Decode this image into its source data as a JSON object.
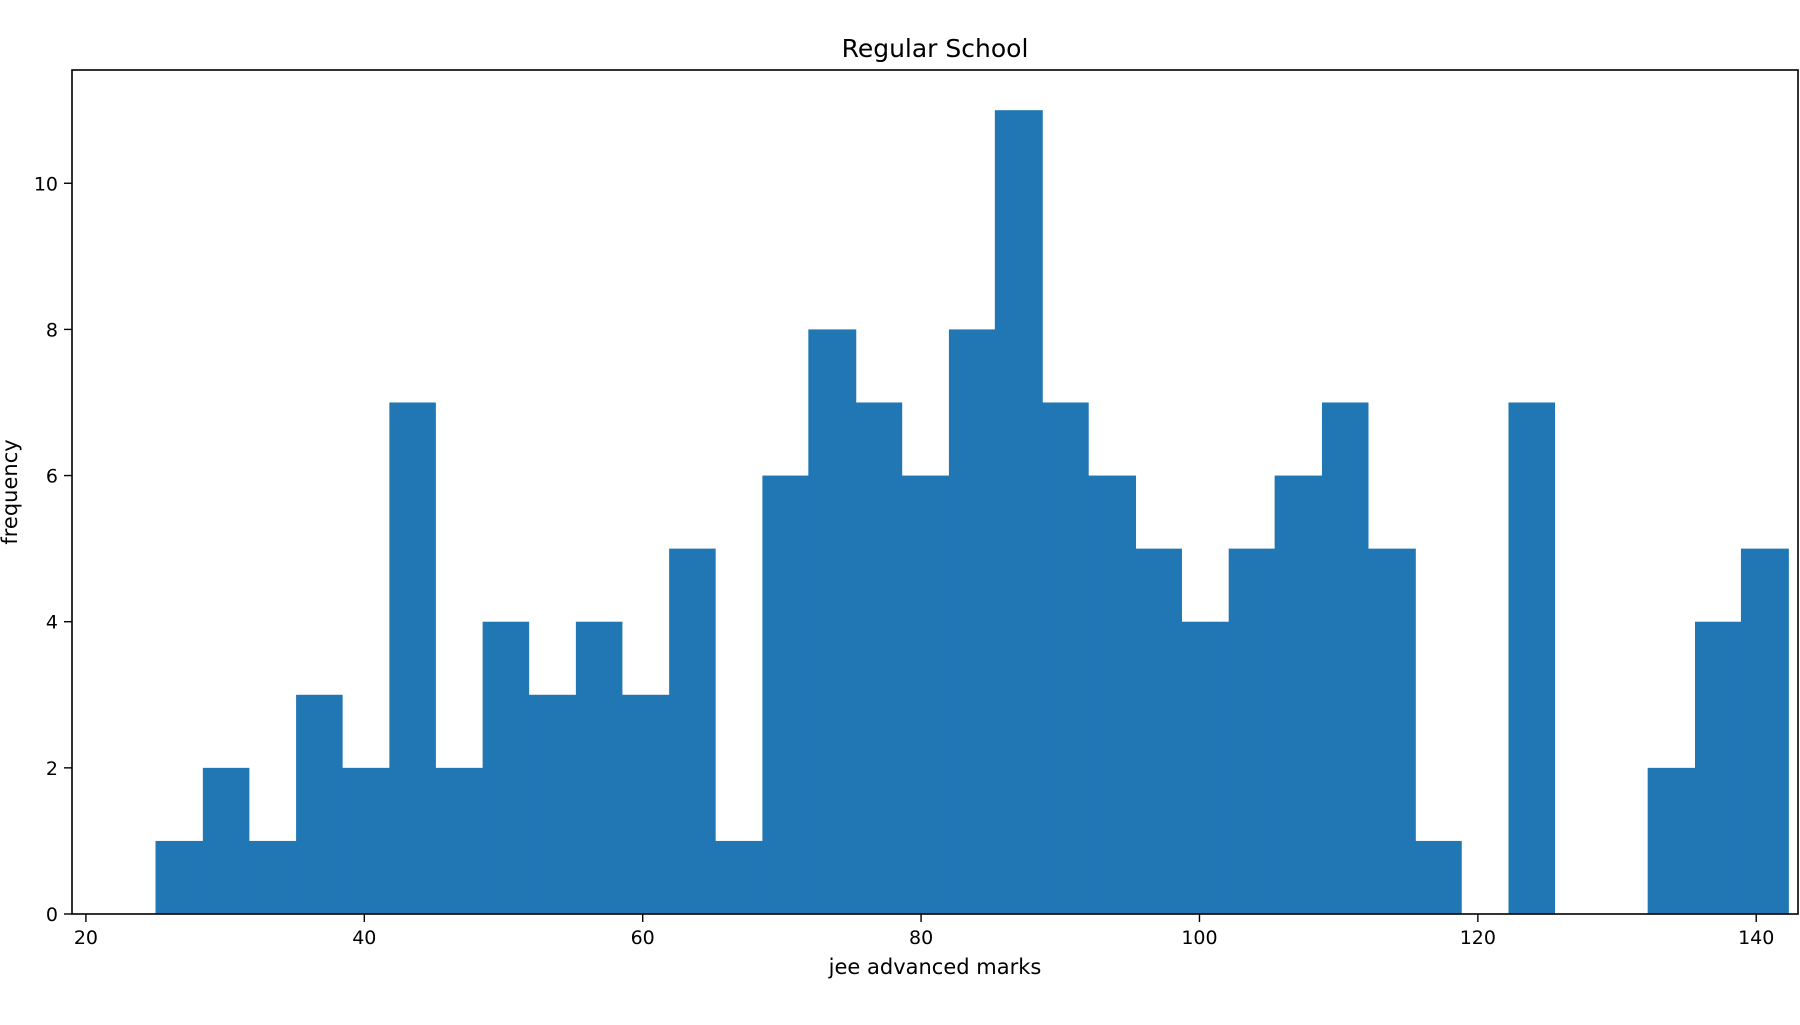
{
  "chart_data": {
    "type": "bar",
    "title": "Regular School",
    "xlabel": "jee advanced marks",
    "ylabel": "frequency",
    "xlim": [
      19,
      143
    ],
    "ylim": [
      0,
      11.55
    ],
    "xticks": [
      20,
      40,
      60,
      80,
      100,
      120,
      140
    ],
    "yticks": [
      0,
      2,
      4,
      6,
      8,
      10
    ],
    "bins": [
      {
        "x0": 25.0,
        "x1": 28.4,
        "value": 1
      },
      {
        "x0": 28.4,
        "x1": 31.7,
        "value": 2
      },
      {
        "x0": 31.7,
        "x1": 35.1,
        "value": 1
      },
      {
        "x0": 35.1,
        "x1": 38.4,
        "value": 3
      },
      {
        "x0": 38.4,
        "x1": 41.8,
        "value": 2
      },
      {
        "x0": 41.8,
        "x1": 45.1,
        "value": 7
      },
      {
        "x0": 45.1,
        "x1": 48.5,
        "value": 2
      },
      {
        "x0": 48.5,
        "x1": 51.8,
        "value": 4
      },
      {
        "x0": 51.8,
        "x1": 55.2,
        "value": 3
      },
      {
        "x0": 55.2,
        "x1": 58.5,
        "value": 4
      },
      {
        "x0": 58.5,
        "x1": 61.9,
        "value": 3
      },
      {
        "x0": 61.9,
        "x1": 65.2,
        "value": 5
      },
      {
        "x0": 65.2,
        "x1": 68.6,
        "value": 1
      },
      {
        "x0": 68.6,
        "x1": 71.9,
        "value": 6
      },
      {
        "x0": 71.9,
        "x1": 75.3,
        "value": 8
      },
      {
        "x0": 75.3,
        "x1": 78.6,
        "value": 7
      },
      {
        "x0": 78.6,
        "x1": 82.0,
        "value": 6
      },
      {
        "x0": 82.0,
        "x1": 85.3,
        "value": 8
      },
      {
        "x0": 85.3,
        "x1": 88.7,
        "value": 11
      },
      {
        "x0": 88.7,
        "x1": 92.0,
        "value": 7
      },
      {
        "x0": 92.0,
        "x1": 95.4,
        "value": 6
      },
      {
        "x0": 95.4,
        "x1": 98.7,
        "value": 5
      },
      {
        "x0": 98.7,
        "x1": 102.1,
        "value": 4
      },
      {
        "x0": 102.1,
        "x1": 105.4,
        "value": 5
      },
      {
        "x0": 105.4,
        "x1": 108.8,
        "value": 6
      },
      {
        "x0": 108.8,
        "x1": 112.1,
        "value": 7
      },
      {
        "x0": 112.1,
        "x1": 115.5,
        "value": 5
      },
      {
        "x0": 115.5,
        "x1": 118.8,
        "value": 1
      },
      {
        "x0": 118.8,
        "x1": 122.2,
        "value": 0
      },
      {
        "x0": 122.2,
        "x1": 125.5,
        "value": 7
      },
      {
        "x0": 125.5,
        "x1": 128.9,
        "value": 0
      },
      {
        "x0": 128.9,
        "x1": 132.2,
        "value": 0
      },
      {
        "x0": 132.2,
        "x1": 135.6,
        "value": 2
      },
      {
        "x0": 135.6,
        "x1": 138.9,
        "value": 4
      },
      {
        "x0": 138.9,
        "x1": 142.3,
        "value": 5
      }
    ],
    "grid": false,
    "legend": "none",
    "colors": {
      "bar": "#2176b4",
      "axis": "#000000",
      "background": "#ffffff"
    }
  }
}
